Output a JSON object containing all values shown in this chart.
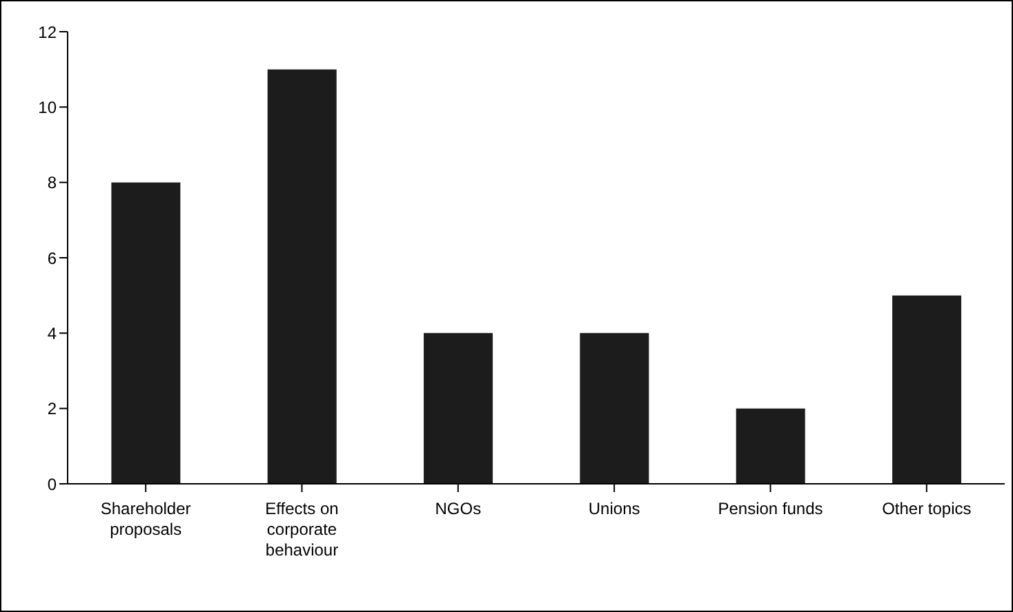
{
  "chart_data": {
    "type": "bar",
    "categories": [
      "Shareholder proposals",
      "Effects on corporate behaviour",
      "NGOs",
      "Unions",
      "Pension funds",
      "Other topics"
    ],
    "values": [
      8,
      11,
      4,
      4,
      2,
      5
    ],
    "color": "#1c1c1c",
    "ylim": [
      0,
      12
    ],
    "yticks": [
      0,
      2,
      4,
      6,
      8,
      10,
      12
    ],
    "grid": false,
    "legend": false
  }
}
